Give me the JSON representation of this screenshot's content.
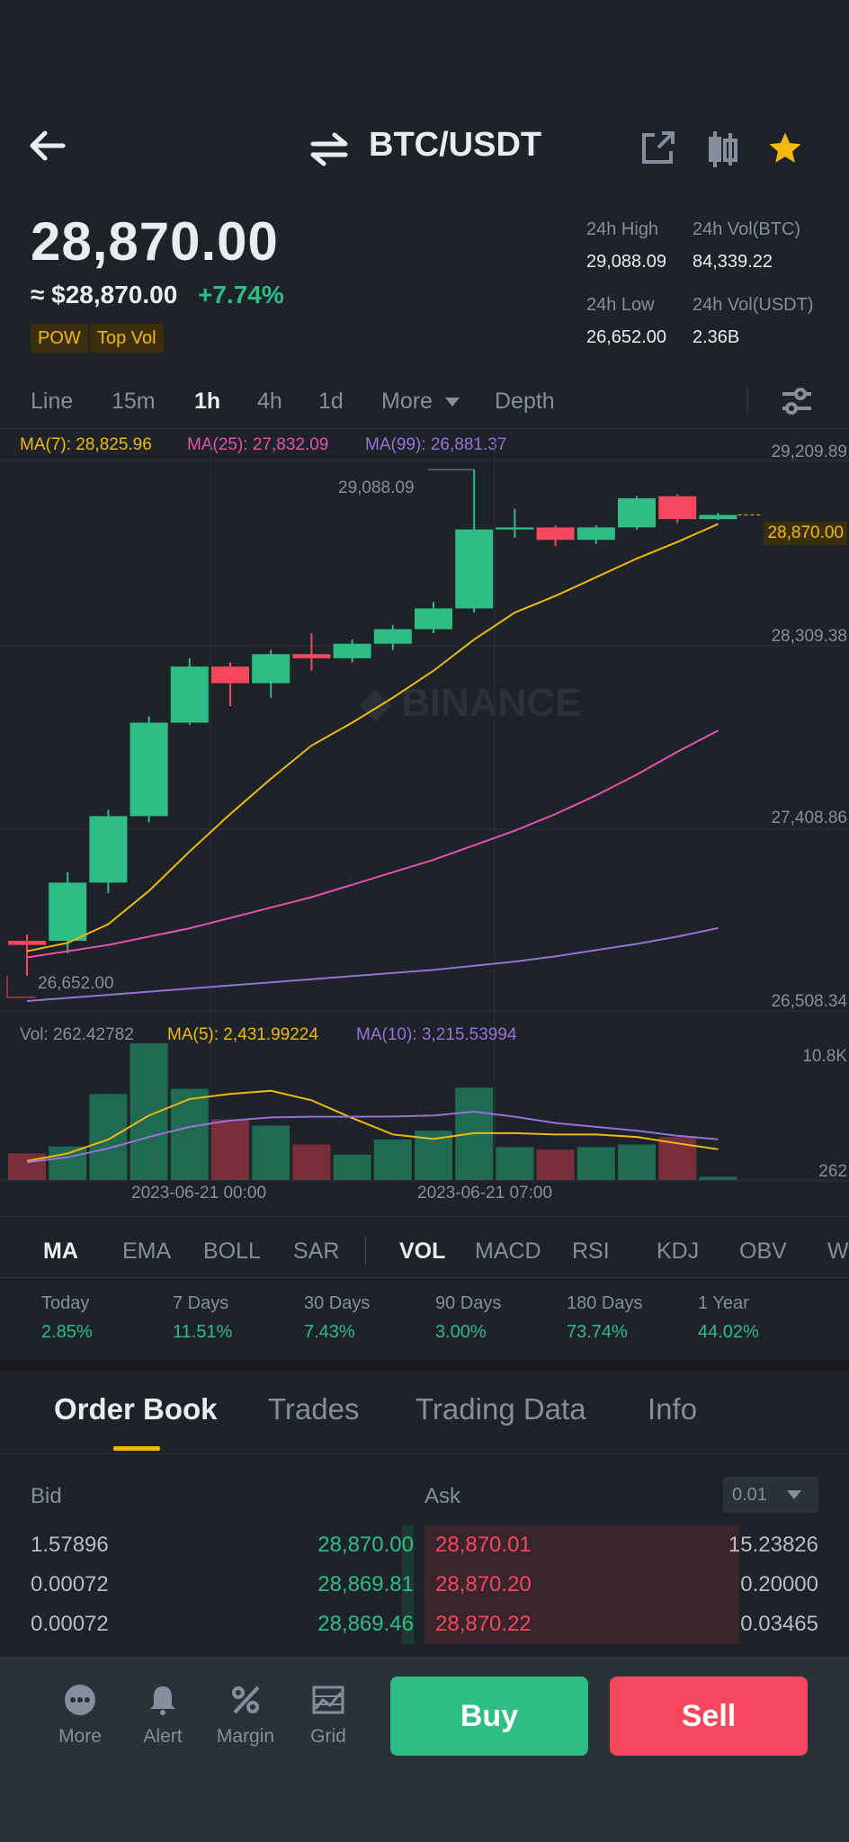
{
  "header": {
    "pair": "BTC/USDT"
  },
  "ticker": {
    "last_price": "28,870.00",
    "usd_price": "≈ $28,870.00",
    "change": "+7.74%",
    "tags": [
      "POW",
      "Top Vol"
    ],
    "stats": [
      {
        "label": "24h High",
        "value": "29,088.09"
      },
      {
        "label": "24h Vol(BTC)",
        "value": "84,339.22"
      },
      {
        "label": "24h Low",
        "value": "26,652.00"
      },
      {
        "label": "24h Vol(USDT)",
        "value": "2.36B"
      }
    ]
  },
  "intervals": [
    "Line",
    "15m",
    "1h",
    "4h",
    "1d",
    "More",
    "Depth"
  ],
  "active_interval": "1h",
  "ma_legend": {
    "ma7": "MA(7): 28,825.96",
    "ma25": "MA(25): 27,832.09",
    "ma99": "MA(99): 26,881.37"
  },
  "vol_legend": {
    "vol": "Vol: 262.42782",
    "ma5": "MA(5): 2,431.99224",
    "ma10": "MA(10): 3,215.53994"
  },
  "chart_data": {
    "type": "candlestick",
    "price_axis_labels": [
      "29,209.89",
      "28,309.38",
      "27,408.86",
      "26,508.34"
    ],
    "current_price_label": "28,870.00",
    "high_marker": "29,088.09",
    "low_marker": "26,652.00",
    "volume_axis_labels": [
      "10.8K",
      "262"
    ],
    "time_labels": [
      "2023-06-21 00:00",
      "2023-06-21 07:00"
    ],
    "ylim": [
      26508.34,
      29300
    ],
    "candles": [
      {
        "o": 26820,
        "h": 26850,
        "l": 26652,
        "c": 26800
      },
      {
        "o": 26820,
        "h": 27150,
        "l": 26760,
        "c": 27100
      },
      {
        "o": 27100,
        "h": 27450,
        "l": 27050,
        "c": 27420
      },
      {
        "o": 27420,
        "h": 27900,
        "l": 27390,
        "c": 27870
      },
      {
        "o": 27870,
        "h": 28180,
        "l": 27860,
        "c": 28140
      },
      {
        "o": 28140,
        "h": 28160,
        "l": 27950,
        "c": 28060
      },
      {
        "o": 28060,
        "h": 28220,
        "l": 27990,
        "c": 28200
      },
      {
        "o": 28200,
        "h": 28300,
        "l": 28120,
        "c": 28180
      },
      {
        "o": 28180,
        "h": 28270,
        "l": 28160,
        "c": 28250
      },
      {
        "o": 28250,
        "h": 28340,
        "l": 28220,
        "c": 28320
      },
      {
        "o": 28320,
        "h": 28450,
        "l": 28300,
        "c": 28420
      },
      {
        "o": 28420,
        "h": 29088.09,
        "l": 28400,
        "c": 28800
      },
      {
        "o": 28800,
        "h": 28900,
        "l": 28760,
        "c": 28810
      },
      {
        "o": 28810,
        "h": 28820,
        "l": 28720,
        "c": 28750
      },
      {
        "o": 28750,
        "h": 28820,
        "l": 28730,
        "c": 28810
      },
      {
        "o": 28810,
        "h": 28960,
        "l": 28800,
        "c": 28950
      },
      {
        "o": 28960,
        "h": 28970,
        "l": 28830,
        "c": 28850
      },
      {
        "o": 28850,
        "h": 28880,
        "l": 28845,
        "c": 28870
      }
    ],
    "ma7": [
      26770,
      26810,
      26900,
      27060,
      27250,
      27430,
      27600,
      27760,
      27870,
      27990,
      28120,
      28270,
      28400,
      28480,
      28570,
      28660,
      28740,
      28825.96
    ],
    "ma25": [
      26740,
      26770,
      26800,
      26840,
      26880,
      26930,
      26980,
      27030,
      27090,
      27150,
      27210,
      27280,
      27350,
      27430,
      27520,
      27620,
      27730,
      27832.09
    ],
    "ma99": [
      26530,
      26545,
      26560,
      26575,
      26590,
      26605,
      26620,
      26635,
      26650,
      26665,
      26680,
      26700,
      26720,
      26745,
      26775,
      26805,
      26840,
      26881.37
    ],
    "volumes": [
      2100,
      2650,
      6800,
      10800,
      7200,
      4800,
      4300,
      2800,
      2000,
      3200,
      3900,
      7300,
      2600,
      2400,
      2600,
      2800,
      3400,
      262
    ],
    "vol_ma5": [
      1500,
      2100,
      3200,
      5100,
      6400,
      6800,
      7050,
      6300,
      4900,
      3600,
      3250,
      3700,
      3700,
      3600,
      3600,
      3400,
      2900,
      2431.99
    ],
    "vol_ma10": [
      1400,
      1800,
      2500,
      3400,
      4200,
      4700,
      4950,
      5000,
      5000,
      5020,
      5100,
      5400,
      5000,
      4500,
      4200,
      3900,
      3500,
      3215.54
    ]
  },
  "indicators": [
    "MA",
    "EMA",
    "BOLL",
    "SAR",
    "VOL",
    "MACD",
    "RSI",
    "KDJ",
    "OBV",
    "W"
  ],
  "performance": [
    {
      "label": "Today",
      "value": "2.85%"
    },
    {
      "label": "7 Days",
      "value": "11.51%"
    },
    {
      "label": "30 Days",
      "value": "7.43%"
    },
    {
      "label": "90 Days",
      "value": "3.00%"
    },
    {
      "label": "180 Days",
      "value": "73.74%"
    },
    {
      "label": "1 Year",
      "value": "44.02%"
    }
  ],
  "order_book": {
    "tabs": [
      "Order Book",
      "Trades",
      "Trading Data",
      "Info"
    ],
    "bid_header": "Bid",
    "ask_header": "Ask",
    "precision": "0.01",
    "rows": [
      {
        "bid_qty": "1.57896",
        "bid_price": "28,870.00",
        "ask_price": "28,870.01",
        "ask_qty": "15.23826",
        "bid_depth": 0.05,
        "ask_depth": 0.8
      },
      {
        "bid_qty": "0.00072",
        "bid_price": "28,869.81",
        "ask_price": "28,870.20",
        "ask_qty": "0.20000",
        "bid_depth": 0.05,
        "ask_depth": 0.8
      },
      {
        "bid_qty": "0.00072",
        "bid_price": "28,869.46",
        "ask_price": "28,870.22",
        "ask_qty": "0.03465",
        "bid_depth": 0.05,
        "ask_depth": 0.8
      }
    ]
  },
  "bottom_bar": {
    "items": [
      "More",
      "Alert",
      "Margin",
      "Grid"
    ],
    "buy_label": "Buy",
    "sell_label": "Sell"
  },
  "colors": {
    "up": "#2ebd85",
    "down": "#f6465d",
    "ma7": "#f0b90b",
    "ma25": "#e84fb0",
    "ma99": "#9b6fd8"
  }
}
